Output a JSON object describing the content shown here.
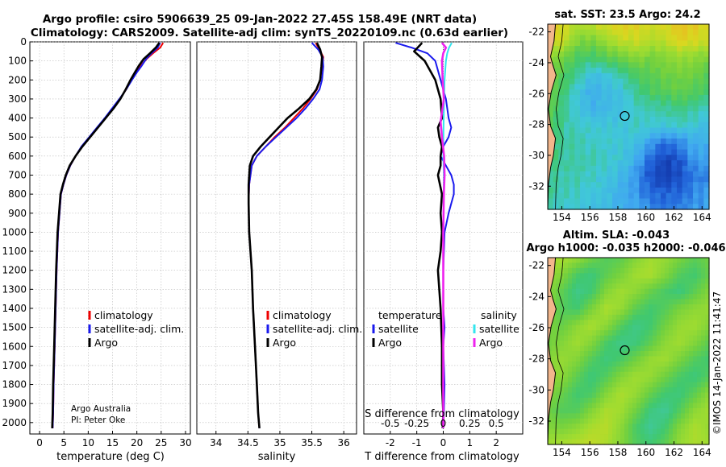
{
  "figure": {
    "title_line1": "Argo profile: csiro 5906639_25 09-Jan-2022 27.45S 158.49E (NRT data)",
    "title_line2": "Climatology: CARS2009. Satellite-adj clim: synTS_20220109.nc (0.63d earlier)",
    "credit_line1": "Argo Australia",
    "credit_line2": "PI: Peter Oke",
    "stamp": "©IMOS 14-Jan-2022 11:41:47"
  },
  "colors": {
    "argo": "#000000",
    "climatology": "#ee0000",
    "satellite_adj": "#1a1aee",
    "salinity_satellite": "#33e5ee",
    "salinity_argo": "#ee22ee",
    "land": "#f2b68c",
    "grid": "#bbbbbb"
  },
  "chart_data": [
    {
      "id": "temperature",
      "type": "line",
      "xlabel": "temperature (deg C)",
      "xlim": [
        -2,
        31
      ],
      "xticks": [
        0,
        5,
        10,
        15,
        20,
        25,
        30
      ],
      "xticklabels": [
        "0",
        "5",
        "10",
        "15",
        "20",
        "25",
        "30"
      ],
      "ylim": [
        0,
        2060
      ],
      "yticks": [
        0,
        100,
        200,
        300,
        400,
        500,
        600,
        700,
        800,
        900,
        1000,
        1100,
        1200,
        1300,
        1400,
        1500,
        1600,
        1700,
        1800,
        1900,
        2000
      ],
      "yticklabels": [
        "0",
        "100",
        "200",
        "300",
        "400",
        "500",
        "600",
        "700",
        "800",
        "900",
        "1000",
        "1100",
        "1200",
        "1300",
        "1400",
        "1500",
        "1600",
        "1700",
        "1800",
        "1900",
        "2000"
      ],
      "legend": [
        "climatology",
        "satellite-adj. clim.",
        "Argo"
      ],
      "series": [
        {
          "name": "climatology",
          "color_key": "climatology",
          "x": [
            25.4,
            24.8,
            23.3,
            22.0,
            20.8,
            19.8,
            18.9,
            17.8,
            16.5,
            15.0,
            13.5,
            11.9,
            10.3,
            8.7,
            7.4,
            6.3,
            5.5,
            4.9,
            4.4,
            4.1,
            3.8,
            3.5,
            3.3,
            3.1,
            2.9,
            2.8,
            2.7
          ],
          "y": [
            5,
            30,
            60,
            90,
            125,
            160,
            200,
            250,
            300,
            350,
            400,
            450,
            500,
            550,
            600,
            650,
            700,
            750,
            800,
            900,
            1000,
            1200,
            1400,
            1600,
            1800,
            1950,
            2030
          ]
        },
        {
          "name": "satellite-adj. clim.",
          "color_key": "satellite_adj",
          "x": [
            24.8,
            24.3,
            23.0,
            21.9,
            21.0,
            20.0,
            19.0,
            17.8,
            16.4,
            14.9,
            13.4,
            11.8,
            10.2,
            8.6,
            7.4,
            6.3,
            5.5,
            4.9,
            4.4,
            4.1,
            3.8,
            3.5,
            3.3,
            3.1,
            2.9,
            2.8,
            2.7
          ],
          "y": [
            5,
            30,
            60,
            90,
            125,
            160,
            200,
            250,
            300,
            350,
            400,
            450,
            500,
            550,
            600,
            650,
            700,
            750,
            800,
            900,
            1000,
            1200,
            1400,
            1600,
            1800,
            1950,
            2030
          ]
        },
        {
          "name": "Argo",
          "color_key": "argo",
          "x": [
            24.6,
            23.9,
            22.7,
            21.4,
            20.4,
            19.6,
            18.7,
            17.7,
            16.6,
            15.2,
            13.6,
            12.0,
            10.4,
            8.8,
            7.4,
            6.2,
            5.4,
            4.8,
            4.3,
            4.0,
            3.7,
            3.4,
            3.2,
            3.0,
            2.8,
            2.7,
            2.6
          ],
          "y": [
            5,
            30,
            60,
            90,
            125,
            160,
            200,
            250,
            300,
            350,
            400,
            450,
            500,
            550,
            600,
            650,
            700,
            750,
            800,
            900,
            1000,
            1200,
            1400,
            1600,
            1800,
            1950,
            2030
          ]
        }
      ]
    },
    {
      "id": "salinity",
      "type": "line",
      "xlabel": "salinity",
      "xlim": [
        33.7,
        36.2
      ],
      "xticks": [
        34,
        34.5,
        35,
        35.5,
        36
      ],
      "xticklabels": [
        "34",
        "34.5",
        "35",
        "35.5",
        "36"
      ],
      "ylim": [
        0,
        2060
      ],
      "legend": [
        "climatology",
        "satellite-adj. clim.",
        "Argo"
      ],
      "series": [
        {
          "name": "climatology",
          "color_key": "climatology",
          "x": [
            35.56,
            35.62,
            35.68,
            35.66,
            35.63,
            35.58,
            35.48,
            35.36,
            35.22,
            35.08,
            34.92,
            34.78,
            34.64,
            34.56,
            34.52,
            34.51,
            34.52,
            34.54,
            34.56,
            34.58,
            34.61,
            34.64,
            34.66,
            34.68
          ],
          "y": [
            5,
            40,
            80,
            130,
            200,
            250,
            300,
            350,
            400,
            450,
            500,
            550,
            600,
            650,
            750,
            850,
            1000,
            1100,
            1200,
            1400,
            1600,
            1800,
            1950,
            2030
          ]
        },
        {
          "name": "satellite-adj. clim.",
          "color_key": "satellite_adj",
          "x": [
            35.5,
            35.6,
            35.67,
            35.68,
            35.66,
            35.62,
            35.52,
            35.4,
            35.26,
            35.1,
            34.94,
            34.78,
            34.64,
            34.56,
            34.52,
            34.51,
            34.52,
            34.54,
            34.56,
            34.58,
            34.61,
            34.64,
            34.66,
            34.68
          ],
          "y": [
            5,
            40,
            80,
            130,
            200,
            250,
            300,
            350,
            400,
            450,
            500,
            550,
            600,
            650,
            750,
            850,
            1000,
            1100,
            1200,
            1400,
            1600,
            1800,
            1950,
            2030
          ]
        },
        {
          "name": "Argo",
          "color_key": "argo",
          "x": [
            35.58,
            35.63,
            35.66,
            35.65,
            35.63,
            35.57,
            35.46,
            35.3,
            35.12,
            34.98,
            34.84,
            34.7,
            34.58,
            34.53,
            34.51,
            34.51,
            34.52,
            34.54,
            34.56,
            34.58,
            34.61,
            34.64,
            34.66,
            34.68
          ],
          "y": [
            5,
            40,
            80,
            130,
            200,
            250,
            300,
            350,
            400,
            450,
            500,
            550,
            600,
            650,
            750,
            850,
            1000,
            1100,
            1200,
            1400,
            1600,
            1800,
            1950,
            2030
          ]
        }
      ]
    },
    {
      "id": "difference",
      "type": "line",
      "xlabel": "T difference from climatology",
      "xlabel2": "S difference from climatology",
      "xlim": [
        -3,
        3
      ],
      "xticks": [
        -2,
        -1,
        0,
        1,
        2
      ],
      "xticklabels": [
        "-2",
        "-1",
        "0",
        "1",
        "2"
      ],
      "s_ticklabels": [
        "-0.5",
        "-0.25",
        "0",
        "0.25",
        "0.5"
      ],
      "ylim": [
        0,
        2060
      ],
      "legend_headers": [
        "temperature",
        "salinity"
      ],
      "legend_left": [
        "satellite",
        "Argo"
      ],
      "legend_right": [
        "satellite",
        "Argo"
      ],
      "series": [
        {
          "name": "temperature satellite",
          "color_key": "satellite_adj",
          "x": [
            -1.8,
            -1.2,
            -0.6,
            -0.3,
            -0.1,
            0.1,
            0.2,
            0.3,
            0.2,
            0.0,
            -0.1,
            0.1,
            0.3,
            0.4,
            0.4,
            0.2,
            0.05,
            0.0,
            0.0,
            0.05,
            0.0,
            0.05,
            0.02,
            0.0
          ],
          "y": [
            5,
            30,
            60,
            100,
            200,
            300,
            400,
            450,
            500,
            550,
            600,
            650,
            700,
            750,
            800,
            900,
            1000,
            1200,
            1400,
            1500,
            1600,
            1800,
            1950,
            2030
          ]
        },
        {
          "name": "temperature Argo",
          "color_key": "argo",
          "x": [
            -0.8,
            -0.9,
            -1.1,
            -0.7,
            -0.3,
            -0.1,
            -0.05,
            -0.2,
            -0.15,
            -0.05,
            -0.1,
            -0.1,
            -0.2,
            -0.05,
            -0.1,
            -0.05,
            -0.1,
            -0.2,
            -0.1,
            -0.05,
            -0.05,
            0.0,
            -0.02
          ],
          "y": [
            5,
            20,
            50,
            100,
            200,
            300,
            400,
            450,
            500,
            550,
            600,
            650,
            700,
            800,
            900,
            1000,
            1100,
            1200,
            1400,
            1600,
            1800,
            1950,
            2030
          ]
        },
        {
          "name": "salinity satellite",
          "color_key": "salinity_satellite",
          "x": [
            0.32,
            0.22,
            0.15,
            0.1,
            0.05,
            0.03,
            0.01,
            0.0,
            0.02,
            0.01,
            0.0,
            0.0,
            0.0,
            0.0
          ],
          "y": [
            5,
            30,
            60,
            100,
            200,
            300,
            450,
            600,
            700,
            900,
            1100,
            1400,
            1800,
            2030
          ]
        },
        {
          "name": "salinity Argo",
          "color_key": "salinity_argo",
          "x": [
            -0.05,
            0.1,
            0.0,
            -0.05,
            -0.02,
            0.02,
            -0.1,
            -0.05,
            0.03,
            0.05,
            0.02,
            0.0,
            0.0,
            0.0,
            0.0
          ],
          "y": [
            5,
            30,
            60,
            100,
            200,
            300,
            420,
            500,
            600,
            700,
            800,
            1000,
            1400,
            1800,
            2030
          ]
        }
      ]
    },
    {
      "id": "sst_map",
      "type": "heatmap",
      "title": "sat. SST: 23.5 Argo: 24.2",
      "xlim": [
        153,
        164.5
      ],
      "ylim": [
        -33.5,
        -21.5
      ],
      "xticks": [
        154,
        156,
        158,
        160,
        162,
        164
      ],
      "yticks": [
        -22,
        -24,
        -26,
        -28,
        -30,
        -32
      ],
      "xticklabels": [
        "154",
        "156",
        "158",
        "160",
        "162",
        "164"
      ],
      "yticklabels": [
        "-22",
        "-24",
        "-26",
        "-28",
        "-30",
        "-32"
      ],
      "float_position": {
        "lon": 158.49,
        "lat": -27.45
      },
      "colormap": [
        "#1030a0",
        "#2060d8",
        "#40a8f0",
        "#40c8d8",
        "#40c870",
        "#70d040",
        "#a0dc30",
        "#d8d820",
        "#f0b020",
        "#f08020"
      ],
      "colormap_range": [
        22.0,
        26.0
      ],
      "rows_lat_north_to_south": [
        [
          25.4,
          25.2,
          24.8,
          24.9,
          25.1,
          25.3,
          25.2,
          25.0,
          25.1,
          25.4,
          25.3,
          25.0
        ],
        [
          25.2,
          25.0,
          24.4,
          24.3,
          24.6,
          24.9,
          25.0,
          24.8,
          24.9,
          25.2,
          25.1,
          24.9
        ],
        [
          24.6,
          24.2,
          23.9,
          23.8,
          24.0,
          24.2,
          24.4,
          24.3,
          24.4,
          24.6,
          24.5,
          24.3
        ],
        [
          24.3,
          24.0,
          23.6,
          23.2,
          23.3,
          23.6,
          23.9,
          24.0,
          24.2,
          24.3,
          24.2,
          24.0
        ],
        [
          24.2,
          23.8,
          23.3,
          23.0,
          23.1,
          23.3,
          23.6,
          23.9,
          24.0,
          24.1,
          24.0,
          23.8
        ],
        [
          24.1,
          23.7,
          23.3,
          23.0,
          23.1,
          23.2,
          23.4,
          23.5,
          23.6,
          23.7,
          23.6,
          23.4
        ],
        [
          24.0,
          23.6,
          23.4,
          23.3,
          23.3,
          23.3,
          23.4,
          23.4,
          23.3,
          23.4,
          23.3,
          23.1
        ],
        [
          23.9,
          23.6,
          23.5,
          23.4,
          23.4,
          23.3,
          23.2,
          22.8,
          22.6,
          22.7,
          23.0,
          23.0
        ],
        [
          23.8,
          23.6,
          23.5,
          23.5,
          23.4,
          23.3,
          23.0,
          22.5,
          22.2,
          22.4,
          22.8,
          22.9
        ],
        [
          23.7,
          23.5,
          23.5,
          23.4,
          23.3,
          23.1,
          22.8,
          22.3,
          22.1,
          22.3,
          22.6,
          22.7
        ],
        [
          23.6,
          23.5,
          23.4,
          23.3,
          23.2,
          23.0,
          22.8,
          22.5,
          22.4,
          22.5,
          22.7,
          22.8
        ],
        [
          23.5,
          23.4,
          23.3,
          23.2,
          23.1,
          23.0,
          22.9,
          22.7,
          22.6,
          22.7,
          22.8,
          22.9
        ]
      ]
    },
    {
      "id": "sla_map",
      "type": "heatmap",
      "title_line1": "Altim. SLA: -0.043",
      "title_line2": "Argo h1000: -0.035 h2000: -0.046",
      "xlim": [
        153,
        164.5
      ],
      "ylim": [
        -33.5,
        -21.5
      ],
      "xticks": [
        154,
        156,
        158,
        160,
        162,
        164
      ],
      "yticks": [
        -22,
        -24,
        -26,
        -28,
        -30,
        -32
      ],
      "xticklabels": [
        "154",
        "156",
        "158",
        "160",
        "162",
        "164"
      ],
      "yticklabels": [
        "-22",
        "-24",
        "-26",
        "-28",
        "-30",
        "-32"
      ],
      "float_position": {
        "lon": 158.49,
        "lat": -27.45
      },
      "colormap": [
        "#2060d8",
        "#40a8f0",
        "#40c8b0",
        "#40c870",
        "#70d040",
        "#a0dc30",
        "#d8d820",
        "#f0b020",
        "#f08020"
      ],
      "colormap_range": [
        -0.2,
        0.2
      ],
      "rows_lat_north_to_south": [
        [
          0.05,
          0.06,
          0.04,
          0.0,
          -0.03,
          -0.02,
          0.02,
          0.05,
          0.04,
          0.01,
          -0.02,
          0.0
        ],
        [
          0.04,
          0.02,
          -0.04,
          -0.06,
          -0.02,
          0.01,
          0.05,
          0.06,
          0.02,
          -0.03,
          -0.05,
          -0.01
        ],
        [
          0.03,
          -0.02,
          -0.07,
          -0.05,
          0.02,
          0.05,
          0.03,
          -0.01,
          -0.04,
          -0.06,
          -0.02,
          0.02
        ],
        [
          0.02,
          -0.03,
          -0.05,
          0.01,
          0.06,
          0.04,
          -0.02,
          -0.05,
          -0.03,
          0.01,
          0.03,
          0.04
        ],
        [
          0.01,
          -0.01,
          0.03,
          0.06,
          0.03,
          -0.03,
          -0.07,
          -0.05,
          0.0,
          0.04,
          0.05,
          0.02
        ],
        [
          0.0,
          0.02,
          0.05,
          0.02,
          -0.04,
          -0.07,
          -0.06,
          -0.02,
          0.03,
          0.05,
          0.02,
          -0.02
        ],
        [
          0.02,
          0.04,
          0.02,
          -0.03,
          -0.06,
          -0.04,
          0.0,
          0.04,
          0.05,
          0.01,
          -0.03,
          -0.05
        ],
        [
          0.03,
          0.03,
          -0.02,
          -0.06,
          -0.03,
          0.02,
          0.05,
          0.04,
          0.0,
          -0.04,
          -0.06,
          -0.03
        ],
        [
          0.02,
          -0.01,
          -0.05,
          -0.04,
          0.02,
          0.06,
          0.04,
          -0.01,
          -0.05,
          -0.06,
          -0.02,
          0.03
        ],
        [
          0.0,
          -0.03,
          -0.03,
          0.02,
          0.06,
          0.05,
          0.0,
          -0.06,
          -0.08,
          -0.03,
          0.03,
          0.05
        ],
        [
          0.02,
          0.01,
          0.03,
          0.06,
          0.07,
          0.03,
          -0.04,
          -0.08,
          -0.05,
          0.02,
          0.06,
          0.04
        ],
        [
          0.05,
          0.06,
          0.07,
          0.08,
          0.06,
          0.02,
          -0.03,
          -0.05,
          -0.02,
          0.04,
          0.06,
          0.05
        ]
      ]
    }
  ]
}
